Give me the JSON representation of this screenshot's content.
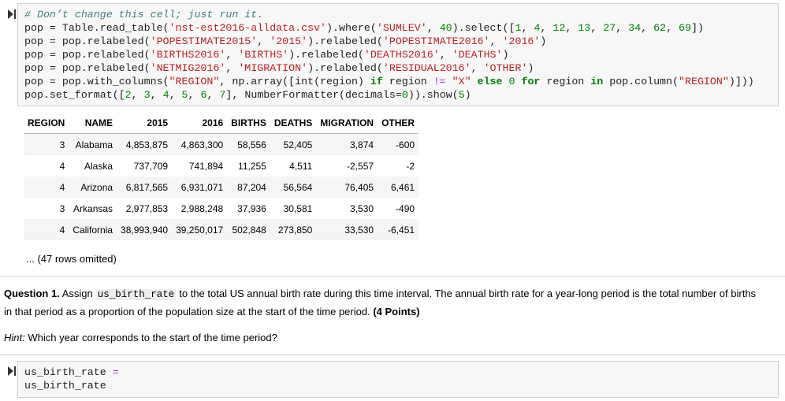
{
  "cells": [
    {
      "code": [
        [
          "# Don’t change this cell; just run it."
        ],
        [
          "pop = Table.read_table(",
          "'nst-est2016-alldata.csv'",
          ").where(",
          "'SUMLEV'",
          ", ",
          "40",
          ").select([",
          "1",
          ", ",
          "4",
          ", ",
          "12",
          ", ",
          "13",
          ", ",
          "27",
          ", ",
          "34",
          ", ",
          "62",
          ", ",
          "69",
          "])"
        ],
        [
          "pop = pop.relabeled(",
          "'POPESTIMATE2015'",
          ", ",
          "'2015'",
          ").relabeled(",
          "'POPESTIMATE2016'",
          ", ",
          "'2016'",
          ")"
        ],
        [
          "pop = pop.relabeled(",
          "'BIRTHS2016'",
          ", ",
          "'BIRTHS'",
          ").relabeled(",
          "'DEATHS2016'",
          ", ",
          "'DEATHS'",
          ")"
        ],
        [
          "pop = pop.relabeled(",
          "'NETMIG2016'",
          ", ",
          "'MIGRATION'",
          ").relabeled(",
          "'RESIDUAL2016'",
          ", ",
          "'OTHER'",
          ")"
        ],
        [
          "pop = pop.with_columns(",
          "\"REGION\"",
          ", np.array([int(region) ",
          "if",
          " region ",
          "!=",
          " ",
          "\"X\"",
          " ",
          "else",
          " ",
          "0",
          " ",
          "for",
          " region ",
          "in",
          " pop.column(",
          "\"REGION\"",
          ")]))"
        ],
        [
          "pop.set_format([",
          "2",
          ", ",
          "3",
          ", ",
          "4",
          ", ",
          "5",
          ", ",
          "6",
          ", ",
          "7",
          "], NumberFormatter(decimals=",
          "0",
          ")).show(",
          "5",
          ")"
        ]
      ]
    },
    {
      "code": [
        [
          "us_birth_rate ",
          "="
        ],
        [
          "us_birth_rate"
        ]
      ]
    }
  ],
  "table": {
    "header": [
      "REGION",
      "NAME",
      "2015",
      "2016",
      "BIRTHS",
      "DEATHS",
      "MIGRATION",
      "OTHER"
    ],
    "rows": [
      [
        "3",
        "Alabama",
        "4,853,875",
        "4,863,300",
        "58,556",
        "52,405",
        "3,874",
        "-600"
      ],
      [
        "4",
        "Alaska",
        "737,709",
        "741,894",
        "11,255",
        "4,511",
        "-2,557",
        "-2"
      ],
      [
        "4",
        "Arizona",
        "6,817,565",
        "6,931,071",
        "87,204",
        "56,564",
        "76,405",
        "6,461"
      ],
      [
        "3",
        "Arkansas",
        "2,977,853",
        "2,988,248",
        "37,936",
        "30,581",
        "3,530",
        "-490"
      ],
      [
        "4",
        "California",
        "38,993,940",
        "39,250,017",
        "502,848",
        "273,850",
        "33,530",
        "-6,451"
      ]
    ],
    "omitted": "... (47 rows omitted)"
  },
  "question": {
    "label": "Question 1.",
    "text1": "Assign",
    "code": "us_birth_rate",
    "text2": "to the total US annual birth rate during this time interval. The annual birth rate for a year-long period is the total number of births in that period as a proportion of the population size at the start of the time period.",
    "points": "(4 Points)"
  },
  "hint": {
    "label": "Hint:",
    "text": "Which year corresponds to the start of the time period?"
  }
}
